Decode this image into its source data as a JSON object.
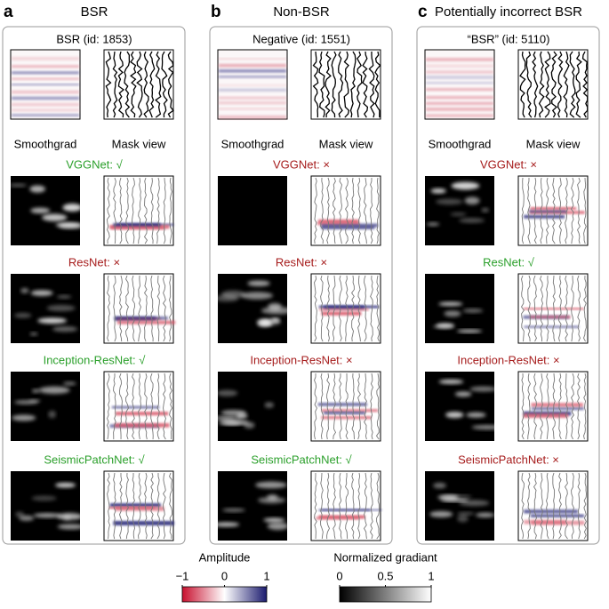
{
  "panels": [
    {
      "letter": "a",
      "title": "BSR",
      "example": "BSR (id: 1853)",
      "left_label": "Smoothgrad",
      "right_label": "Mask view",
      "models": [
        {
          "label": "VGGNet: √",
          "color": "#2ca02c"
        },
        {
          "label": "ResNet: ×",
          "color": "#a61c1c"
        },
        {
          "label": "Inception-ResNet: √",
          "color": "#2ca02c"
        },
        {
          "label": "SeismicPatchNet: √",
          "color": "#2ca02c"
        }
      ]
    },
    {
      "letter": "b",
      "title": "Non-BSR",
      "example": "Negative (id: 1551)",
      "left_label": "Smoothgrad",
      "right_label": "Mask view",
      "models": [
        {
          "label": "VGGNet: ×",
          "color": "#a61c1c"
        },
        {
          "label": "ResNet: ×",
          "color": "#a61c1c"
        },
        {
          "label": "Inception-ResNet: ×",
          "color": "#a61c1c"
        },
        {
          "label": "SeismicPatchNet: √",
          "color": "#2ca02c"
        }
      ]
    },
    {
      "letter": "c",
      "title": "Potentially incorrect BSR",
      "example": "“BSR” (id: 5110)",
      "left_label": "Smoothgrad",
      "right_label": "Mask view",
      "models": [
        {
          "label": "VGGNet: ×",
          "color": "#a61c1c"
        },
        {
          "label": "ResNet: √",
          "color": "#2ca02c"
        },
        {
          "label": "Inception-ResNet: ×",
          "color": "#a61c1c"
        },
        {
          "label": "SeismicPatchNet: ×",
          "color": "#a61c1c"
        }
      ]
    }
  ],
  "colorbars": [
    {
      "title": "Amplitude",
      "ticks": [
        "−1",
        "0",
        "1"
      ]
    },
    {
      "title": "Normalized gradiant",
      "ticks": [
        "0",
        "0.5",
        "1"
      ]
    }
  ]
}
